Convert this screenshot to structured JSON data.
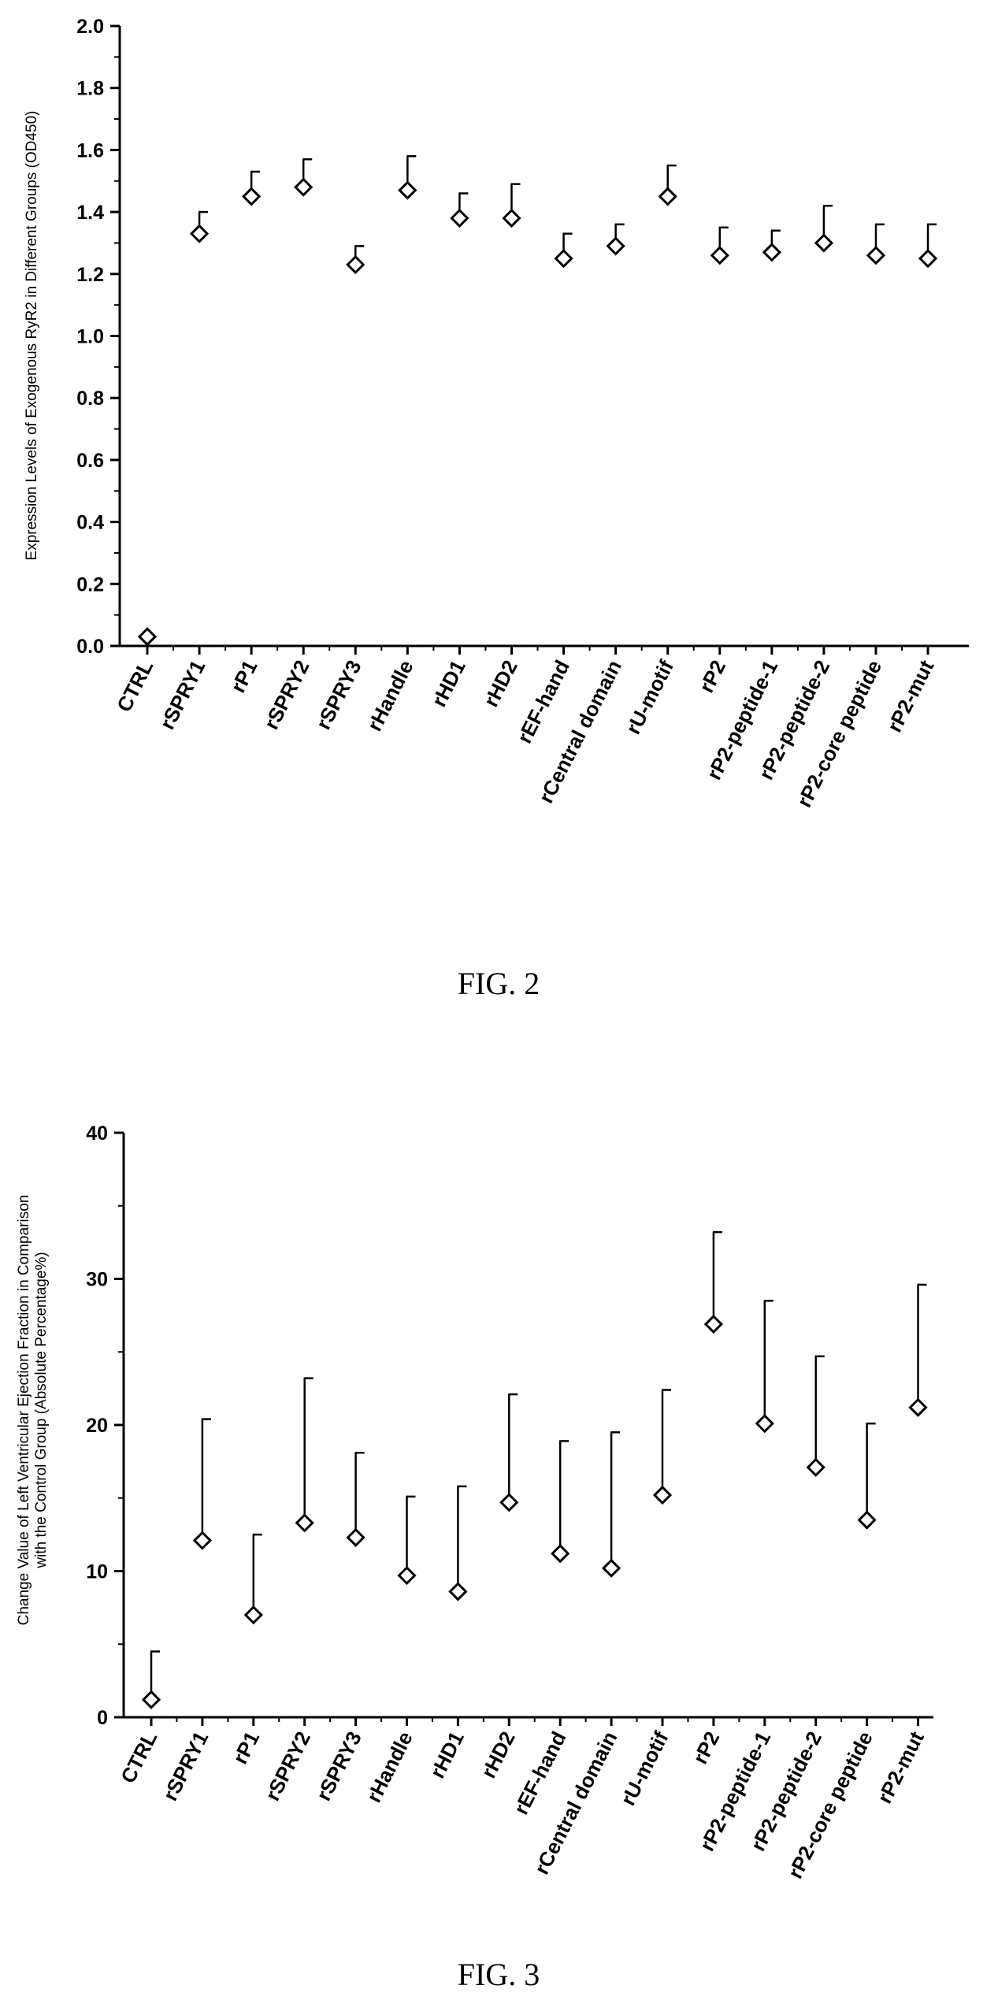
{
  "figures": {
    "fig2_caption": "FIG. 2",
    "fig3_caption": "FIG. 3"
  },
  "chart_data": [
    {
      "type": "scatter",
      "marker": "diamond",
      "error_bars": "upper",
      "categories": [
        "CTRL",
        "rSPRY1",
        "rP1",
        "rSPRY2",
        "rSPRY3",
        "rHandle",
        "rHD1",
        "rHD2",
        "rEF-hand",
        "rCentral domain",
        "rU-motif",
        "rP2",
        "rP2-peptide-1",
        "rP2-peptide-2",
        "rP2-core peptide",
        "rP2-mut"
      ],
      "values": [
        0.03,
        1.33,
        1.45,
        1.48,
        1.23,
        1.47,
        1.38,
        1.38,
        1.25,
        1.29,
        1.45,
        1.26,
        1.27,
        1.3,
        1.26,
        1.25
      ],
      "upper_error": [
        0.0,
        0.07,
        0.08,
        0.09,
        0.06,
        0.11,
        0.08,
        0.11,
        0.08,
        0.07,
        0.1,
        0.09,
        0.07,
        0.12,
        0.1,
        0.11
      ],
      "ylabel": "Expression Levels of Exogenous RyR2 in Different Groups (OD450)",
      "ylim": [
        0,
        2.0
      ],
      "yticks": [
        "0.0",
        "0.2",
        "0.4",
        "0.6",
        "0.8",
        "1.0",
        "1.2",
        "1.4",
        "1.6",
        "1.8",
        "2.0"
      ],
      "grid": false
    },
    {
      "type": "scatter",
      "marker": "diamond",
      "error_bars": "upper",
      "categories": [
        "CTRL",
        "rSPRY1",
        "rP1",
        "rSPRY2",
        "rSPRY3",
        "rHandle",
        "rHD1",
        "rHD2",
        "rEF-hand",
        "rCentral domain",
        "rU-motif",
        "rP2",
        "rP2-peptide-1",
        "rP2-peptide-2",
        "rP2-core peptide",
        "rP2-mut"
      ],
      "values": [
        1.2,
        12.1,
        7.0,
        13.3,
        12.3,
        9.7,
        8.6,
        14.7,
        11.2,
        10.2,
        15.2,
        26.9,
        20.1,
        17.1,
        13.5,
        21.2
      ],
      "upper_error": [
        3.3,
        8.3,
        5.5,
        9.9,
        5.8,
        5.4,
        7.2,
        7.4,
        7.7,
        9.3,
        7.2,
        6.3,
        8.4,
        7.6,
        6.6,
        8.4
      ],
      "ylabel_line1": "Change Value of Left Ventricular Ejection Fraction in Comparison",
      "ylabel_line2": "with the Control Group (Absolute Percentage%)",
      "ylim": [
        0,
        40
      ],
      "yticks": [
        "0",
        "10",
        "20",
        "30",
        "40"
      ],
      "grid": false
    }
  ]
}
